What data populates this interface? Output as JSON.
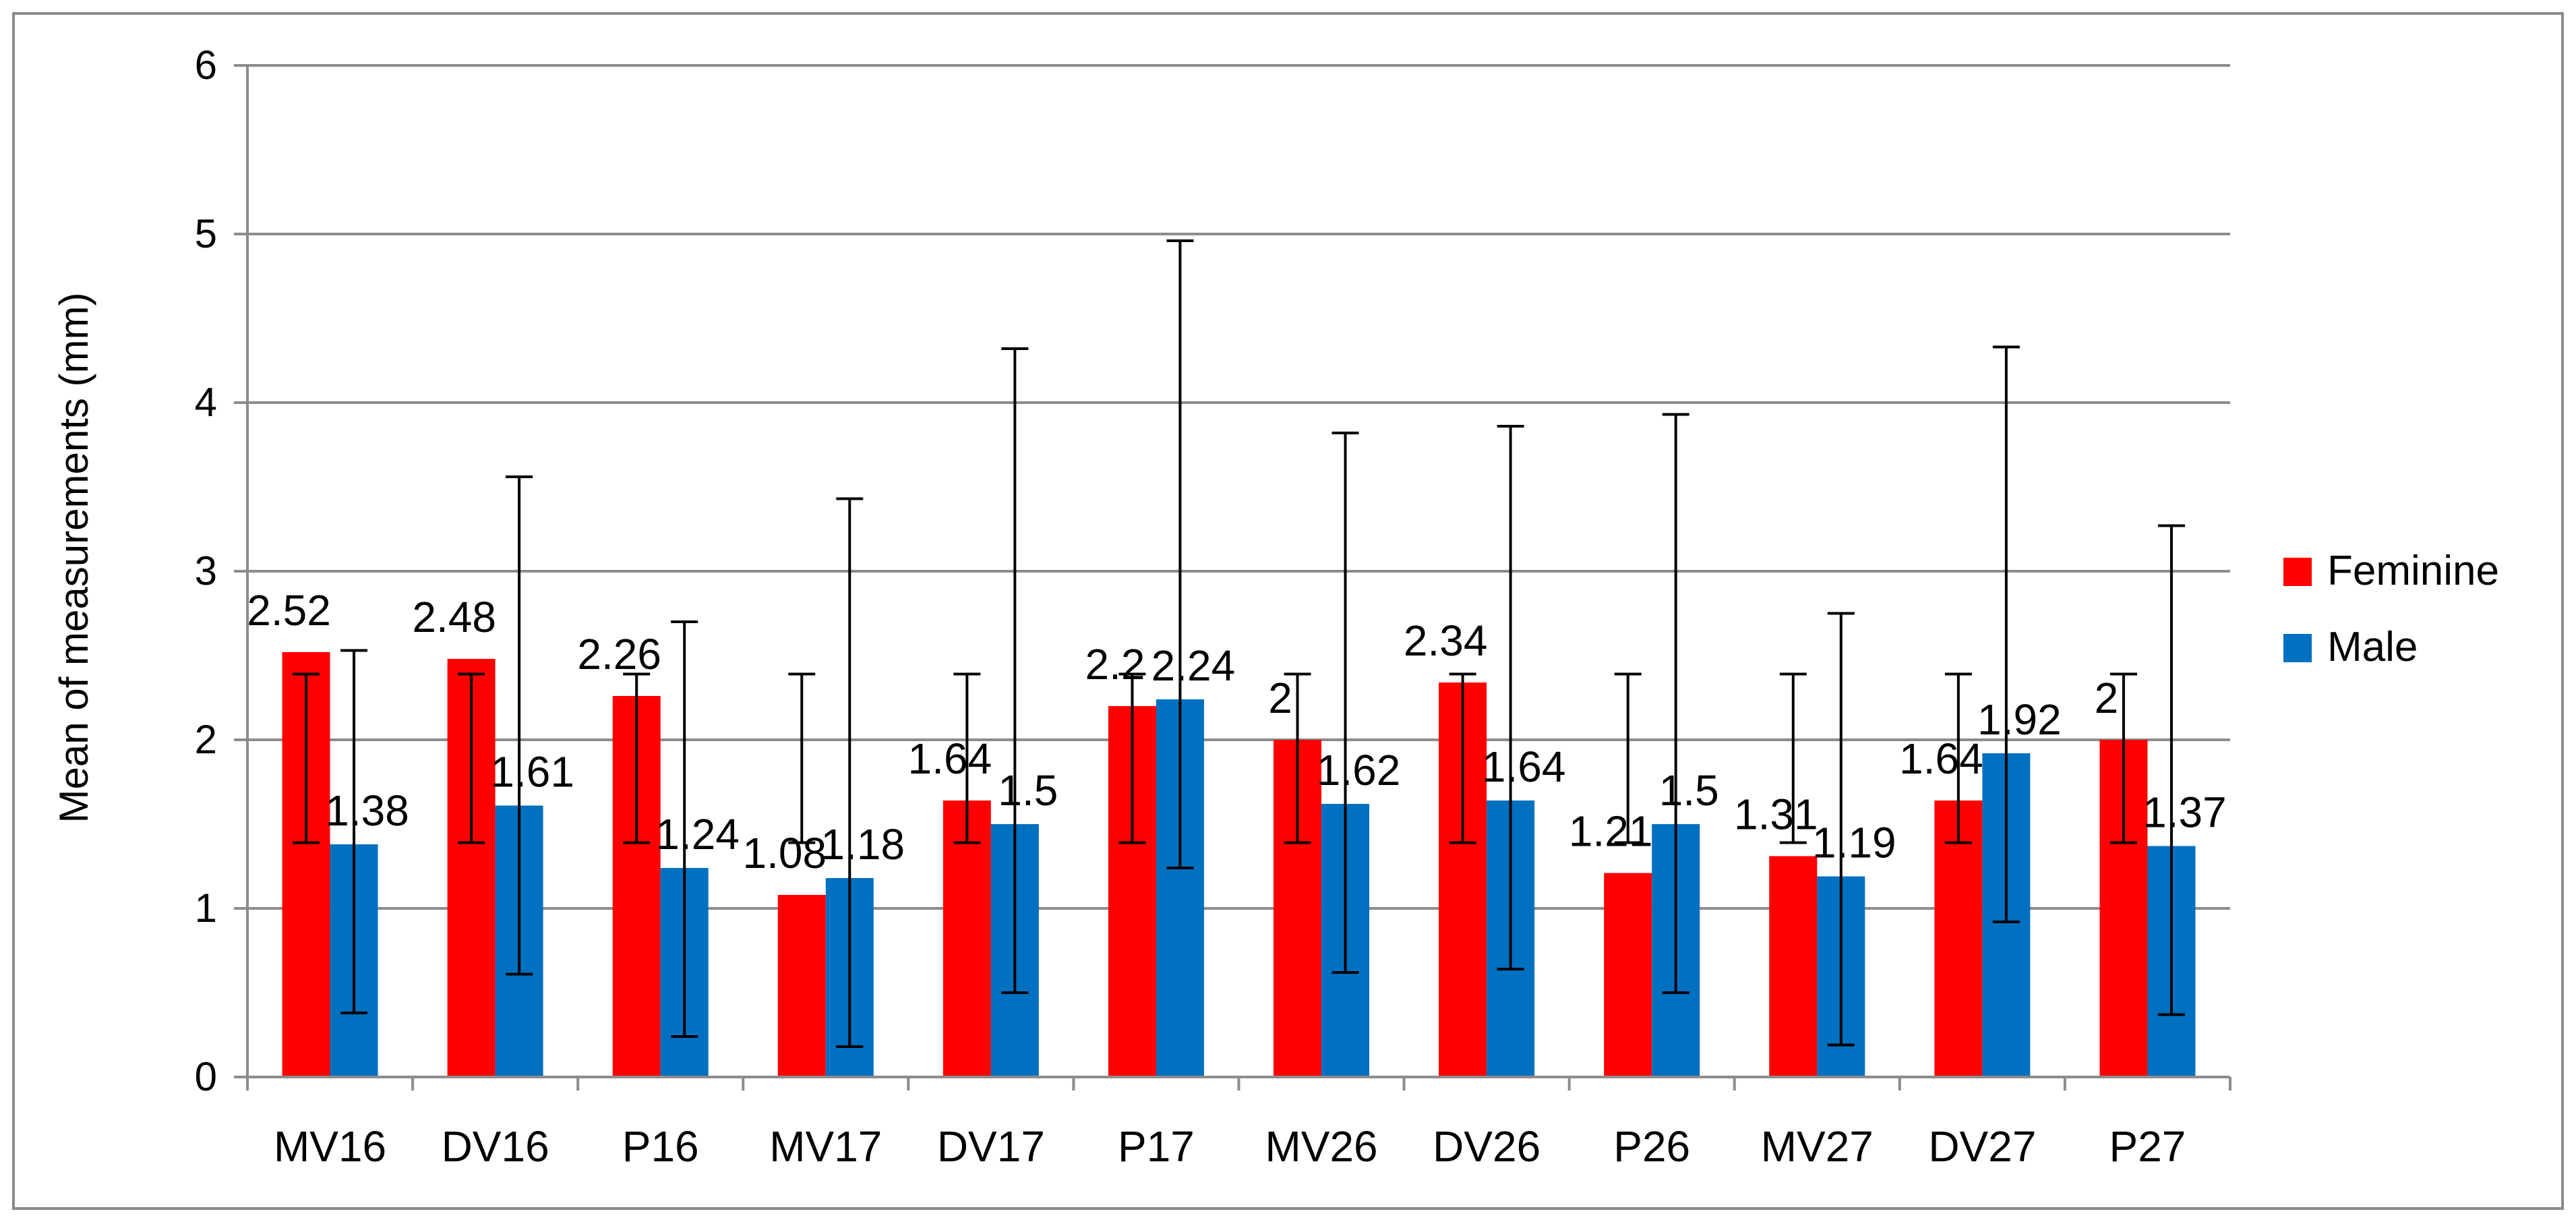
{
  "chart_data": {
    "type": "bar",
    "title": "",
    "xlabel": "",
    "ylabel": "Mean of measurements (mm)",
    "ylim": [
      0,
      6
    ],
    "yticks": [
      "0",
      "1",
      "2",
      "3",
      "4",
      "5",
      "6"
    ],
    "categories": [
      "MV16",
      "DV16",
      "P16",
      "MV17",
      "DV17",
      "P17",
      "MV26",
      "DV26",
      "P26",
      "MV27",
      "DV27",
      "P27"
    ],
    "grid": true,
    "legend_position": "right",
    "series": [
      {
        "name": "Feminine",
        "color": "#ff0000",
        "values": [
          2.52,
          2.48,
          2.26,
          1.08,
          1.64,
          2.2,
          2,
          2.34,
          1.21,
          1.31,
          1.64,
          2
        ],
        "labels": [
          "2.52",
          "2.48",
          "2.26",
          "1.08",
          "1.64",
          "2.2",
          "2",
          "2.34",
          "1.21",
          "1.31",
          "1.64",
          "2"
        ],
        "error_low": [
          1.39,
          1.39,
          1.39,
          1.39,
          1.39,
          1.39,
          1.39,
          1.39,
          1.39,
          1.39,
          1.39,
          1.39
        ],
        "error_high": [
          2.39,
          2.39,
          2.39,
          2.39,
          2.39,
          2.39,
          2.39,
          2.39,
          2.39,
          2.39,
          2.39,
          2.39
        ]
      },
      {
        "name": "Male",
        "color": "#0070c0",
        "values": [
          1.38,
          1.61,
          1.24,
          1.18,
          1.5,
          2.24,
          1.62,
          1.64,
          1.5,
          1.19,
          1.92,
          1.37
        ],
        "labels": [
          "1.38",
          "1.61",
          "1.24",
          "1.18",
          "1.5",
          "2.24",
          "1.62",
          "1.64",
          "1.5",
          "1.19",
          "1.92",
          "1.37"
        ],
        "error_low": [
          0.38,
          0.61,
          0.24,
          0.18,
          0.5,
          1.24,
          0.62,
          0.64,
          0.5,
          0.19,
          0.92,
          0.37
        ],
        "error_high": [
          2.53,
          3.56,
          2.7,
          3.43,
          4.32,
          4.96,
          3.82,
          3.86,
          3.93,
          2.75,
          4.33,
          3.27
        ]
      }
    ]
  }
}
